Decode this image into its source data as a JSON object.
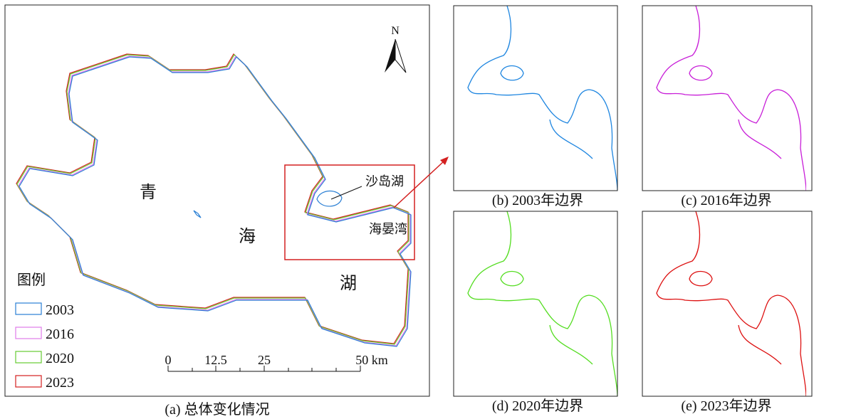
{
  "main": {
    "caption": "(a) 总体变化情况",
    "lake_labels": [
      "青",
      "海",
      "湖"
    ],
    "callouts": [
      "沙岛湖",
      "海晏湾"
    ],
    "north": "N",
    "legend": {
      "title": "图例",
      "items": [
        {
          "label": "2003",
          "color": "#2a7fd4"
        },
        {
          "label": "2016",
          "color": "#e07be8"
        },
        {
          "label": "2020",
          "color": "#66cc33"
        },
        {
          "label": "2023",
          "color": "#d42020"
        }
      ]
    },
    "scale_bar": {
      "labels": [
        "0",
        "12.5",
        "25",
        "50 km"
      ]
    }
  },
  "panels": [
    {
      "caption": "(b)  2003年边界",
      "color": "#1f86e0"
    },
    {
      "caption": "(c)  2016年边界",
      "color": "#c81fd8"
    },
    {
      "caption": "(d)  2020年边界",
      "color": "#55dd22"
    },
    {
      "caption": "(e)  2023年边界",
      "color": "#dd1111"
    }
  ]
}
